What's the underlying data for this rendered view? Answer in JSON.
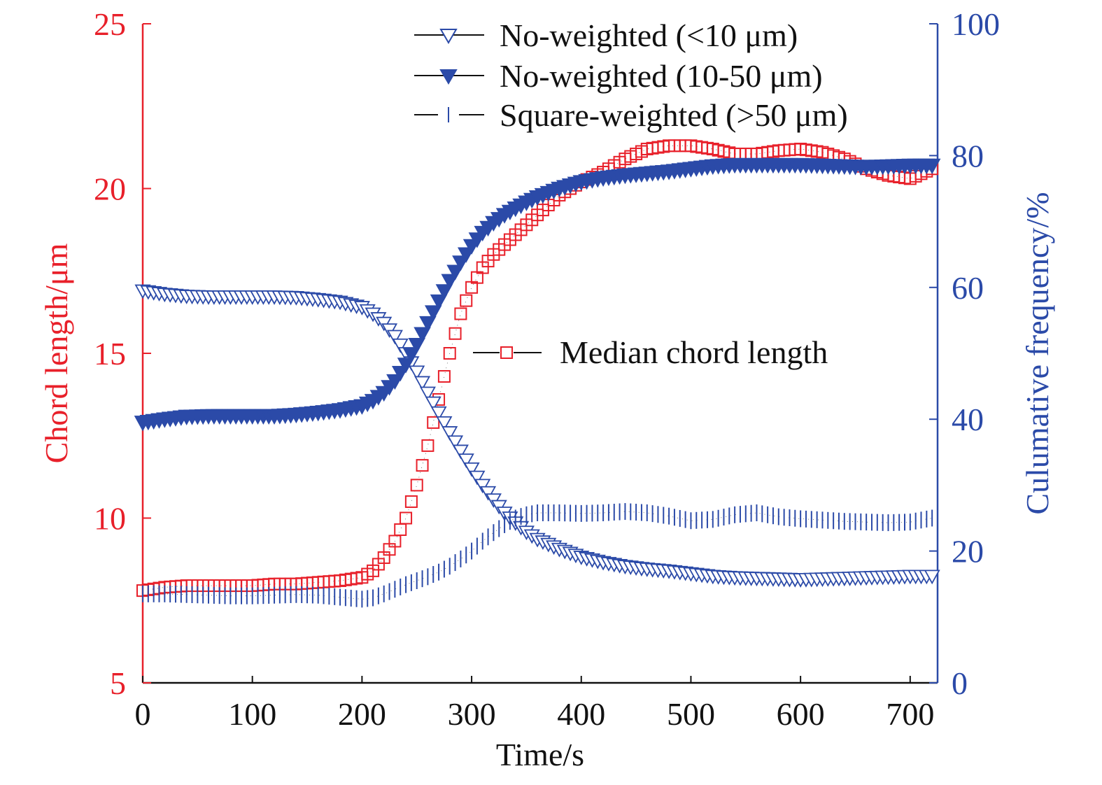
{
  "chart_data": {
    "type": "scatter",
    "xlabel": "Time/s",
    "ylabel_left": "Chord length/μm",
    "ylabel_right": "Culumative frequency/%",
    "xlim": [
      0,
      725
    ],
    "ylim_left": [
      5,
      25
    ],
    "ylim_right": [
      0,
      100
    ],
    "xticks": [
      0,
      100,
      200,
      300,
      400,
      500,
      600,
      700
    ],
    "yticks_left": [
      5,
      10,
      15,
      20,
      25
    ],
    "yticks_right": [
      0,
      20,
      40,
      60,
      80,
      100
    ],
    "grid": false,
    "colors": {
      "left_axis": "#e8202a",
      "right_axis": "#2b4aa8",
      "median_marker": "#e8202a",
      "freq_marker": "#2b4aa8"
    },
    "legend": {
      "placement": "top-right",
      "entries": [
        "No-weighted (<10 μm)",
        "No-weighted (10-50 μm)",
        "Square-weighted (>50 μm)"
      ]
    },
    "annotation": "Median chord length",
    "series": [
      {
        "name": "Median chord length",
        "axis": "left",
        "marker": "open-square",
        "x": [
          0,
          20,
          40,
          60,
          80,
          100,
          120,
          140,
          160,
          180,
          200,
          210,
          220,
          230,
          240,
          250,
          260,
          270,
          280,
          290,
          300,
          310,
          320,
          330,
          340,
          350,
          360,
          370,
          380,
          390,
          400,
          420,
          440,
          460,
          480,
          500,
          520,
          540,
          560,
          580,
          600,
          620,
          640,
          660,
          680,
          700,
          720
        ],
        "y": [
          7.8,
          7.9,
          7.95,
          7.95,
          7.95,
          7.95,
          8.0,
          8.0,
          8.05,
          8.1,
          8.2,
          8.4,
          8.8,
          9.3,
          10.0,
          11.0,
          12.2,
          13.6,
          15.0,
          16.2,
          17.0,
          17.6,
          18.0,
          18.3,
          18.6,
          18.9,
          19.2,
          19.5,
          19.8,
          20.0,
          20.2,
          20.5,
          20.9,
          21.2,
          21.3,
          21.3,
          21.2,
          21.05,
          21.05,
          21.15,
          21.2,
          21.1,
          20.9,
          20.6,
          20.4,
          20.3,
          20.6
        ]
      },
      {
        "name": "No-weighted (<10 μm)",
        "axis": "right",
        "marker": "open-triangle-down",
        "x": [
          0,
          20,
          40,
          60,
          80,
          100,
          120,
          140,
          160,
          180,
          200,
          210,
          220,
          230,
          240,
          250,
          260,
          270,
          280,
          290,
          300,
          310,
          320,
          330,
          340,
          350,
          360,
          380,
          400,
          420,
          440,
          460,
          480,
          500,
          520,
          540,
          560,
          580,
          600,
          620,
          640,
          660,
          680,
          700,
          720
        ],
        "y": [
          59.5,
          59,
          58.7,
          58.6,
          58.6,
          58.6,
          58.6,
          58.5,
          58.2,
          57.8,
          57.0,
          56.0,
          54.6,
          52.6,
          50.0,
          47.2,
          44.0,
          41.0,
          38.0,
          35.2,
          32.5,
          30.0,
          27.8,
          25.8,
          24.3,
          22.9,
          21.8,
          20.3,
          19.1,
          18.3,
          17.7,
          17.3,
          17.0,
          16.6,
          16.2,
          16.0,
          15.9,
          15.8,
          15.7,
          15.8,
          15.9,
          16.0,
          16.1,
          16.2,
          16.2
        ]
      },
      {
        "name": "No-weighted (10-50 μm)",
        "axis": "right",
        "marker": "filled-triangle-down",
        "x": [
          0,
          20,
          40,
          60,
          80,
          100,
          120,
          140,
          160,
          180,
          200,
          210,
          220,
          230,
          240,
          250,
          260,
          270,
          280,
          290,
          300,
          310,
          320,
          330,
          340,
          350,
          360,
          380,
          400,
          420,
          440,
          460,
          480,
          500,
          520,
          540,
          560,
          580,
          600,
          620,
          640,
          660,
          680,
          700,
          720
        ],
        "y": [
          39.5,
          40.0,
          40.4,
          40.5,
          40.5,
          40.5,
          40.5,
          40.7,
          41.0,
          41.4,
          42.0,
          42.8,
          44.0,
          45.8,
          48.3,
          51.3,
          54.6,
          57.9,
          61.0,
          63.8,
          66.3,
          68.3,
          69.8,
          71.0,
          72.0,
          72.9,
          73.7,
          75.0,
          76.0,
          76.6,
          77.0,
          77.3,
          77.6,
          78.0,
          78.4,
          78.6,
          78.6,
          78.6,
          78.6,
          78.5,
          78.4,
          78.3,
          78.4,
          78.5,
          78.5
        ]
      },
      {
        "name": "Square-weighted (>50 μm)",
        "axis": "right",
        "marker": "vertical-bar",
        "x": [
          0,
          20,
          40,
          60,
          80,
          100,
          120,
          140,
          160,
          180,
          200,
          210,
          220,
          230,
          240,
          250,
          260,
          270,
          280,
          290,
          300,
          310,
          320,
          330,
          340,
          350,
          360,
          380,
          400,
          420,
          440,
          460,
          480,
          500,
          520,
          540,
          560,
          580,
          600,
          620,
          640,
          660,
          680,
          700,
          720
        ],
        "y": [
          13.5,
          13.5,
          13.4,
          13.3,
          13.2,
          13.2,
          13.3,
          13.4,
          13.3,
          13.0,
          12.7,
          12.9,
          13.5,
          14.2,
          14.9,
          15.5,
          16.1,
          16.8,
          17.7,
          18.8,
          20.0,
          21.5,
          22.8,
          24.0,
          25.0,
          25.5,
          25.8,
          25.8,
          25.7,
          25.8,
          26.0,
          25.8,
          25.3,
          24.6,
          24.8,
          25.5,
          25.8,
          25.2,
          24.9,
          24.7,
          24.5,
          24.4,
          24.3,
          24.4,
          25.0
        ]
      }
    ]
  }
}
